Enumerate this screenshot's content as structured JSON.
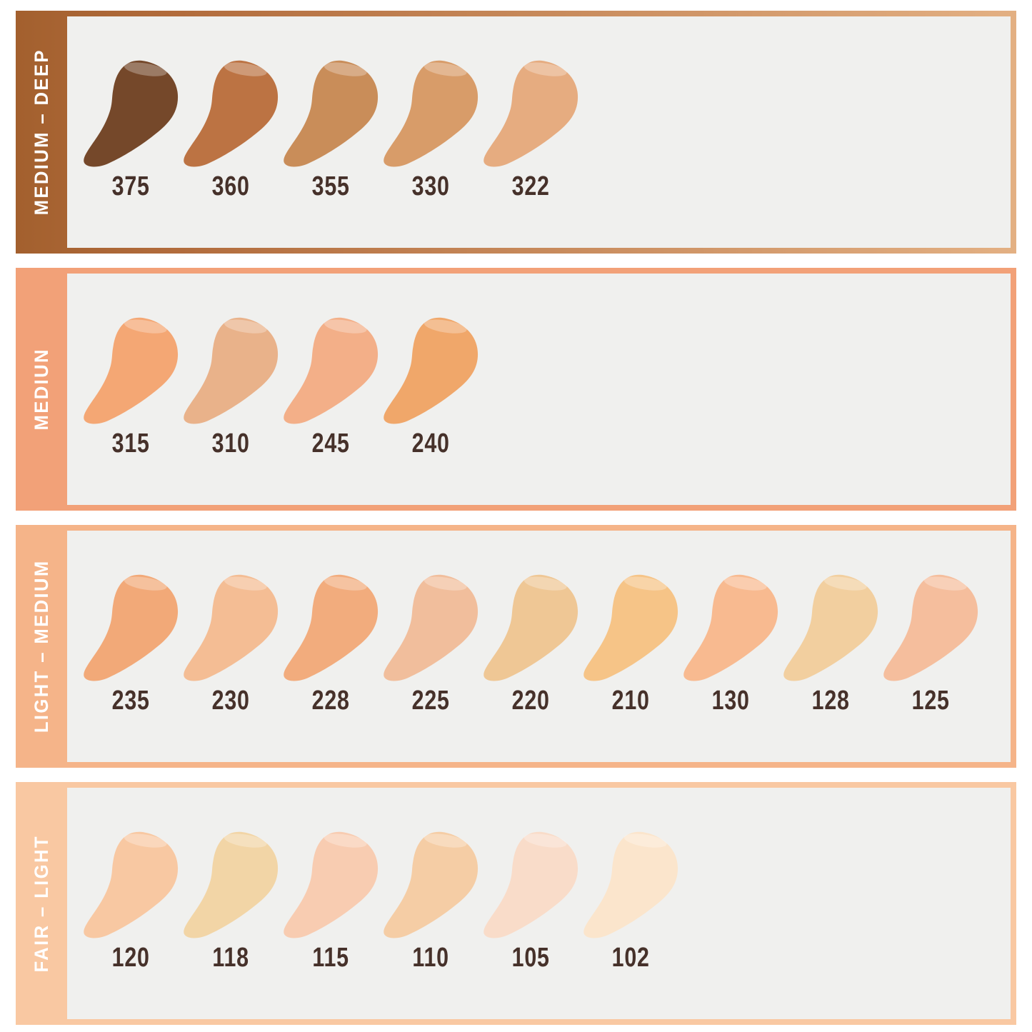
{
  "page": {
    "page_bg": "#FFFFFF",
    "panel_bg": "#F0F0EE",
    "shade_number_color": "#46312A",
    "range_label_color": "#FFFFFF"
  },
  "rows": [
    {
      "id": "medium-deep",
      "label": "MEDIUM – DEEP",
      "band": {
        "type": "gradient",
        "from": "#A3602E",
        "mid": "#B16B3B",
        "to": "#E3B083"
      },
      "swatches": [
        {
          "shade": "375",
          "color": "#75482A"
        },
        {
          "shade": "360",
          "color": "#BC7343"
        },
        {
          "shade": "355",
          "color": "#C98D59"
        },
        {
          "shade": "330",
          "color": "#D89C69"
        },
        {
          "shade": "322",
          "color": "#E6AC80"
        }
      ]
    },
    {
      "id": "medium",
      "label": "MEDIUN",
      "band": {
        "type": "solid",
        "color": "#F2A178"
      },
      "swatches": [
        {
          "shade": "315",
          "color": "#F4A774"
        },
        {
          "shade": "310",
          "color": "#E9B28A"
        },
        {
          "shade": "245",
          "color": "#F3AF88"
        },
        {
          "shade": "240",
          "color": "#F0A76A"
        }
      ]
    },
    {
      "id": "light-medium",
      "label": "LIGHT – MEDIUM",
      "band": {
        "type": "solid",
        "color": "#F5B489"
      },
      "swatches": [
        {
          "shade": "235",
          "color": "#F2A978"
        },
        {
          "shade": "230",
          "color": "#F4BD94"
        },
        {
          "shade": "228",
          "color": "#F2AC7D"
        },
        {
          "shade": "225",
          "color": "#F1BE9C"
        },
        {
          "shade": "220",
          "color": "#EFC795"
        },
        {
          "shade": "210",
          "color": "#F6C487"
        },
        {
          "shade": "130",
          "color": "#F8BA90"
        },
        {
          "shade": "128",
          "color": "#F2CF9F"
        },
        {
          "shade": "125",
          "color": "#F5BE9D"
        }
      ]
    },
    {
      "id": "fair-light",
      "label": "FAIR – LIGHT",
      "band": {
        "type": "solid",
        "color": "#F9C8A2"
      },
      "swatches": [
        {
          "shade": "120",
          "color": "#F8C8A2"
        },
        {
          "shade": "118",
          "color": "#F2D5A6"
        },
        {
          "shade": "115",
          "color": "#F8CCB1"
        },
        {
          "shade": "110",
          "color": "#F5CDA5"
        },
        {
          "shade": "105",
          "color": "#F9DCC9"
        },
        {
          "shade": "102",
          "color": "#FBE5CC"
        }
      ]
    }
  ],
  "chart_data": {
    "type": "table",
    "title": "",
    "groups": [
      {
        "range": "MEDIUM – DEEP",
        "shades": [
          "375",
          "360",
          "355",
          "330",
          "322"
        ],
        "colors": [
          "#75482A",
          "#BC7343",
          "#C98D59",
          "#D89C69",
          "#E6AC80"
        ]
      },
      {
        "range": "MEDIUN",
        "shades": [
          "315",
          "310",
          "245",
          "240"
        ],
        "colors": [
          "#F4A774",
          "#E9B28A",
          "#F3AF88",
          "#F0A76A"
        ]
      },
      {
        "range": "LIGHT – MEDIUM",
        "shades": [
          "235",
          "230",
          "228",
          "225",
          "220",
          "210",
          "130",
          "128",
          "125"
        ],
        "colors": [
          "#F2A978",
          "#F4BD94",
          "#F2AC7D",
          "#F1BE9C",
          "#EFC795",
          "#F6C487",
          "#F8BA90",
          "#F2CF9F",
          "#F5BE9D"
        ]
      },
      {
        "range": "FAIR – LIGHT",
        "shades": [
          "120",
          "118",
          "115",
          "110",
          "105",
          "102"
        ],
        "colors": [
          "#F8C8A2",
          "#F2D5A6",
          "#F8CCB1",
          "#F5CDA5",
          "#F9DCC9",
          "#FBE5CC"
        ]
      }
    ]
  }
}
